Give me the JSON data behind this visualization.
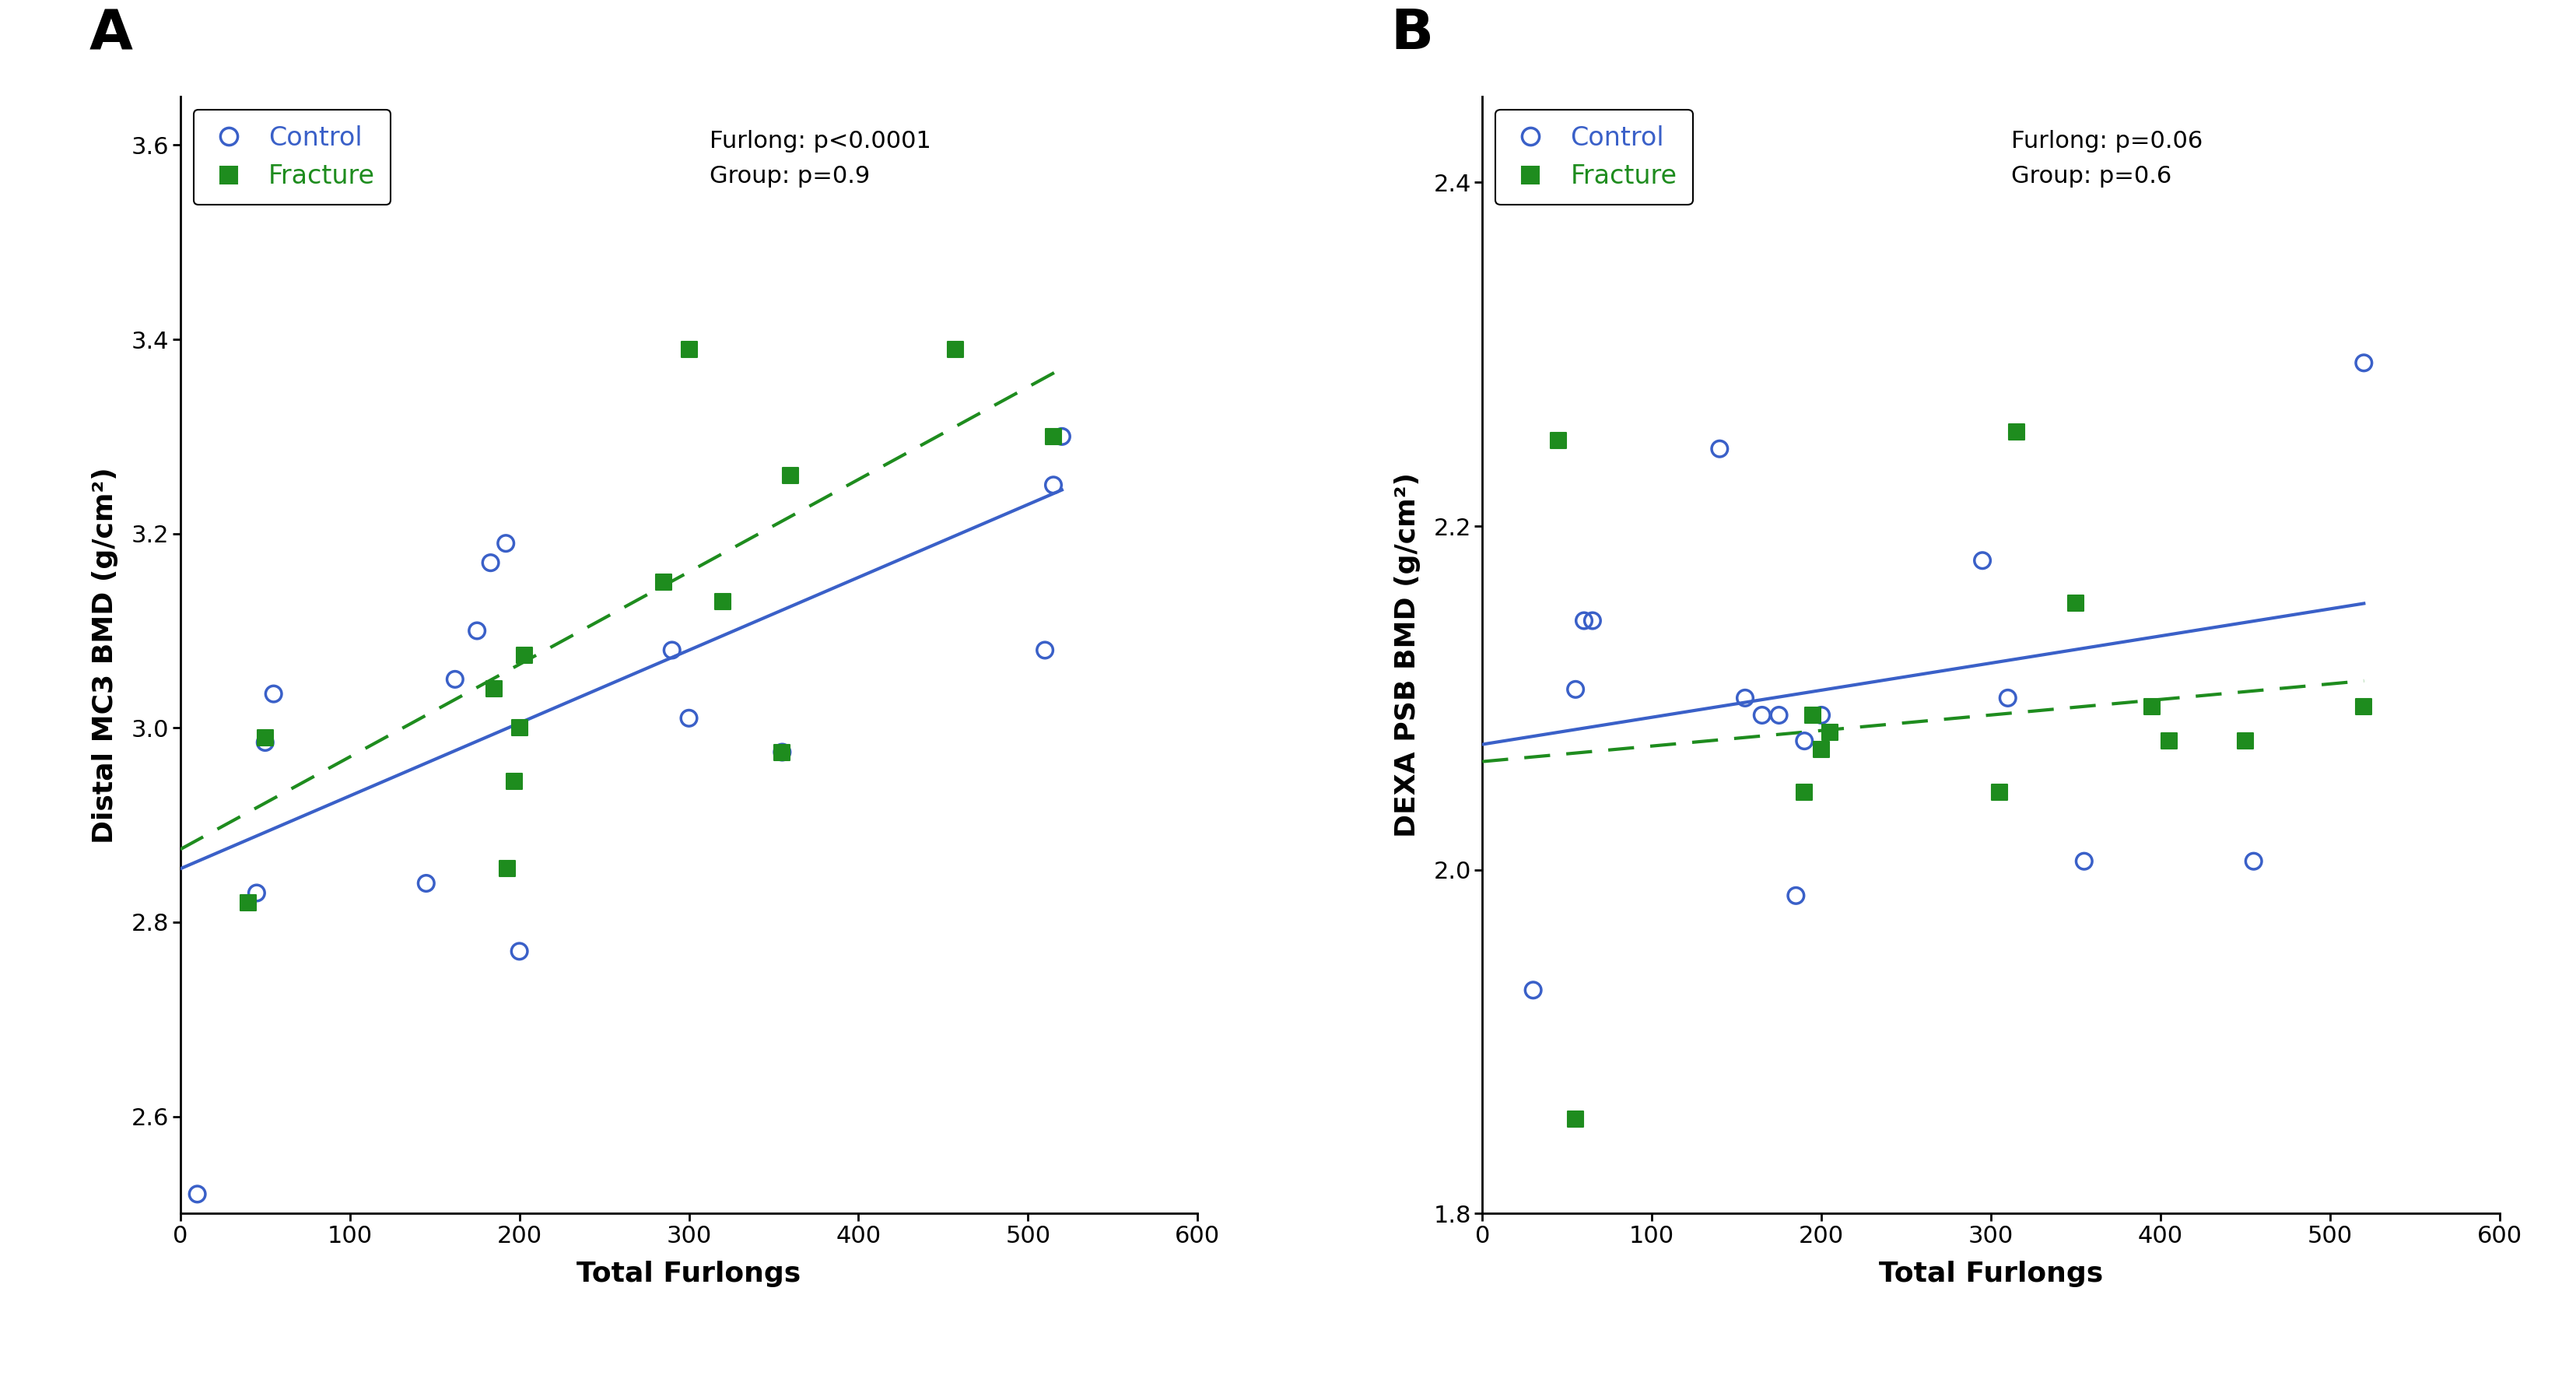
{
  "panel_A": {
    "title": "A",
    "xlabel": "Total Furlongs",
    "ylabel": "Distal MC3 BMD (g/cm²)",
    "xlim": [
      0,
      600
    ],
    "ylim": [
      2.5,
      3.65
    ],
    "yticks": [
      2.6,
      2.8,
      3.0,
      3.2,
      3.4,
      3.6
    ],
    "xticks": [
      0,
      100,
      200,
      300,
      400,
      500,
      600
    ],
    "annotation": "Furlong: p<0.0001\nGroup: p=0.9",
    "control_x": [
      10,
      45,
      50,
      55,
      145,
      162,
      175,
      183,
      192,
      200,
      290,
      300,
      355,
      510,
      515,
      520
    ],
    "control_y": [
      2.52,
      2.83,
      2.985,
      3.035,
      2.84,
      3.05,
      3.1,
      3.17,
      3.19,
      2.77,
      3.08,
      3.01,
      2.975,
      3.08,
      3.25,
      3.3
    ],
    "fracture_x": [
      40,
      50,
      185,
      193,
      197,
      200,
      203,
      285,
      300,
      320,
      355,
      360,
      457,
      515
    ],
    "fracture_y": [
      2.82,
      2.99,
      3.04,
      2.855,
      2.945,
      3.0,
      3.075,
      3.15,
      3.39,
      3.13,
      2.975,
      3.26,
      3.39,
      3.3
    ],
    "control_line_x": [
      0,
      520
    ],
    "control_line_y": [
      2.855,
      3.245
    ],
    "fracture_line_x": [
      0,
      520
    ],
    "fracture_line_y": [
      2.875,
      3.37
    ]
  },
  "panel_B": {
    "title": "B",
    "xlabel": "Total Furlongs",
    "ylabel": "DEXA PSB BMD (g/cm²)",
    "xlim": [
      0,
      600
    ],
    "ylim": [
      1.8,
      2.45
    ],
    "yticks": [
      1.8,
      2.0,
      2.2,
      2.4
    ],
    "xticks": [
      0,
      100,
      200,
      300,
      400,
      500,
      600
    ],
    "annotation": "Furlong: p=0.06\nGroup: p=0.6",
    "control_x": [
      30,
      55,
      60,
      65,
      140,
      155,
      165,
      175,
      185,
      190,
      200,
      295,
      310,
      355,
      455,
      520
    ],
    "control_y": [
      1.93,
      2.105,
      2.145,
      2.145,
      2.245,
      2.1,
      2.09,
      2.09,
      1.985,
      2.075,
      2.09,
      2.18,
      2.1,
      2.005,
      2.005,
      2.295
    ],
    "fracture_x": [
      45,
      55,
      190,
      195,
      200,
      205,
      305,
      315,
      350,
      395,
      405,
      450,
      520
    ],
    "fracture_y": [
      2.25,
      1.855,
      2.045,
      2.09,
      2.07,
      2.08,
      2.045,
      2.255,
      2.155,
      2.095,
      2.075,
      2.075,
      2.095
    ],
    "control_line_x": [
      0,
      520
    ],
    "control_line_y": [
      2.073,
      2.155
    ],
    "fracture_line_x": [
      0,
      520
    ],
    "fracture_line_y": [
      2.063,
      2.11
    ]
  },
  "control_color": "#3A60C8",
  "fracture_color": "#1E8C1E",
  "marker_size": 220,
  "line_width": 3.0,
  "font_size_label": 26,
  "font_size_tick": 22,
  "font_size_legend": 24,
  "font_size_annotation": 22,
  "font_size_panel_label": 52
}
